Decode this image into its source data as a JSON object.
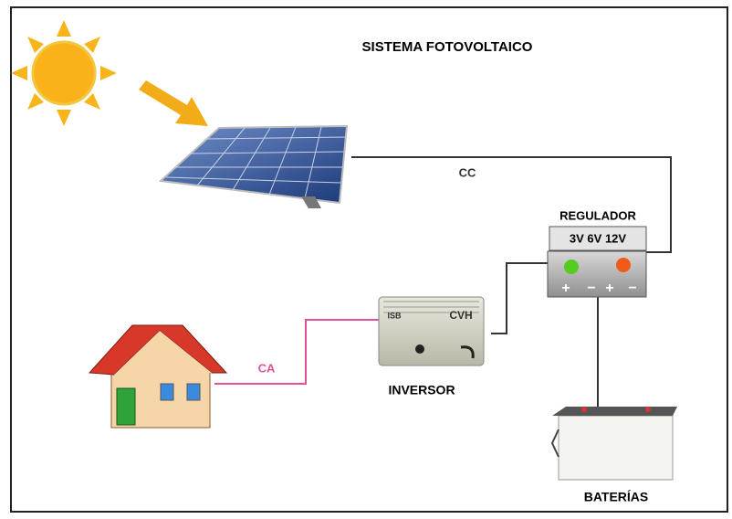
{
  "title": "SISTEMA FOTOVOLTAICO",
  "labels": {
    "cc": "CC",
    "ca": "CA",
    "regulator": "REGULADOR",
    "voltages": "3V 6V 12V",
    "inverter": "INVERSOR",
    "batteries": "BATERÍAS"
  },
  "terminals": [
    "+",
    "−",
    "+",
    "−"
  ],
  "inverter_brand": [
    "ISB",
    "CVH"
  ]
}
